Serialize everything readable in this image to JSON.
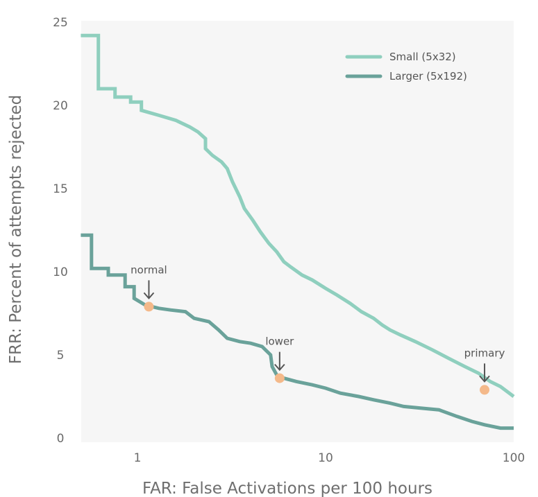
{
  "chart_data": {
    "type": "line",
    "xlabel": "FAR: False Activations per 100 hours",
    "ylabel": "FRR: Percent of attempts rejected",
    "x_scale": "log",
    "xlim": [
      0.5,
      100
    ],
    "ylim": [
      0,
      25
    ],
    "x_ticks": [
      1,
      10,
      100
    ],
    "x_tick_labels": [
      "1",
      "10",
      "100"
    ],
    "y_ticks": [
      0,
      5,
      10,
      15,
      20,
      25
    ],
    "y_tick_labels": [
      "0",
      "5",
      "10",
      "15",
      "20",
      "25"
    ],
    "grid": false,
    "legend_position": "top-right",
    "series": [
      {
        "name": "Small (5x32)",
        "color": "#8fcfbe",
        "points": [
          [
            0.5,
            24.2
          ],
          [
            0.62,
            24.2
          ],
          [
            0.62,
            21.0
          ],
          [
            0.76,
            21.0
          ],
          [
            0.76,
            20.5
          ],
          [
            0.92,
            20.5
          ],
          [
            0.92,
            20.2
          ],
          [
            1.05,
            20.2
          ],
          [
            1.05,
            19.7
          ],
          [
            1.3,
            19.4
          ],
          [
            1.6,
            19.1
          ],
          [
            1.9,
            18.7
          ],
          [
            2.1,
            18.4
          ],
          [
            2.3,
            18.0
          ],
          [
            2.3,
            17.4
          ],
          [
            2.5,
            17.0
          ],
          [
            2.8,
            16.6
          ],
          [
            3.0,
            16.2
          ],
          [
            3.2,
            15.4
          ],
          [
            3.5,
            14.5
          ],
          [
            3.7,
            13.8
          ],
          [
            4.1,
            13.1
          ],
          [
            4.5,
            12.4
          ],
          [
            5.0,
            11.7
          ],
          [
            5.5,
            11.2
          ],
          [
            6.0,
            10.6
          ],
          [
            6.5,
            10.3
          ],
          [
            7.5,
            9.8
          ],
          [
            8.5,
            9.5
          ],
          [
            10.0,
            9.0
          ],
          [
            11.5,
            8.6
          ],
          [
            13.5,
            8.1
          ],
          [
            15.5,
            7.6
          ],
          [
            18.0,
            7.2
          ],
          [
            20.0,
            6.8
          ],
          [
            22.0,
            6.5
          ],
          [
            25.0,
            6.2
          ],
          [
            30.0,
            5.8
          ],
          [
            37.0,
            5.3
          ],
          [
            45.0,
            4.8
          ],
          [
            55.0,
            4.3
          ],
          [
            65.0,
            3.9
          ],
          [
            75.0,
            3.4
          ],
          [
            85.0,
            3.1
          ],
          [
            100.0,
            2.5
          ]
        ]
      },
      {
        "name": "Larger (5x192)",
        "color": "#6aa29a",
        "points": [
          [
            0.5,
            12.2
          ],
          [
            0.57,
            12.2
          ],
          [
            0.57,
            10.2
          ],
          [
            0.7,
            10.2
          ],
          [
            0.7,
            9.8
          ],
          [
            0.86,
            9.8
          ],
          [
            0.86,
            9.1
          ],
          [
            0.96,
            9.1
          ],
          [
            0.96,
            8.4
          ],
          [
            1.1,
            8.0
          ],
          [
            1.3,
            7.8
          ],
          [
            1.5,
            7.7
          ],
          [
            1.8,
            7.6
          ],
          [
            2.0,
            7.2
          ],
          [
            2.4,
            7.0
          ],
          [
            2.7,
            6.5
          ],
          [
            3.0,
            6.0
          ],
          [
            3.5,
            5.8
          ],
          [
            4.0,
            5.7
          ],
          [
            4.6,
            5.5
          ],
          [
            5.1,
            5.0
          ],
          [
            5.2,
            4.3
          ],
          [
            5.5,
            3.8
          ],
          [
            6.0,
            3.6
          ],
          [
            7.0,
            3.4
          ],
          [
            8.5,
            3.2
          ],
          [
            10.0,
            3.0
          ],
          [
            12.0,
            2.7
          ],
          [
            15.0,
            2.5
          ],
          [
            18.0,
            2.3
          ],
          [
            22.0,
            2.1
          ],
          [
            26.0,
            1.9
          ],
          [
            32.0,
            1.8
          ],
          [
            40.0,
            1.7
          ],
          [
            50.0,
            1.3
          ],
          [
            60.0,
            1.0
          ],
          [
            70.0,
            0.8
          ],
          [
            85.0,
            0.6
          ],
          [
            100.0,
            0.6
          ]
        ]
      }
    ],
    "annotations": [
      {
        "label": "normal",
        "x": 1.15,
        "y": 7.9,
        "series": "Larger (5x192)"
      },
      {
        "label": "lower",
        "x": 5.7,
        "y": 3.6,
        "series": "Larger (5x192)"
      },
      {
        "label": "primary",
        "x": 70.0,
        "y": 2.9,
        "series": "Small (5x32)"
      }
    ],
    "marker_color": "#f4b98a",
    "arrow_color": "#555555"
  }
}
